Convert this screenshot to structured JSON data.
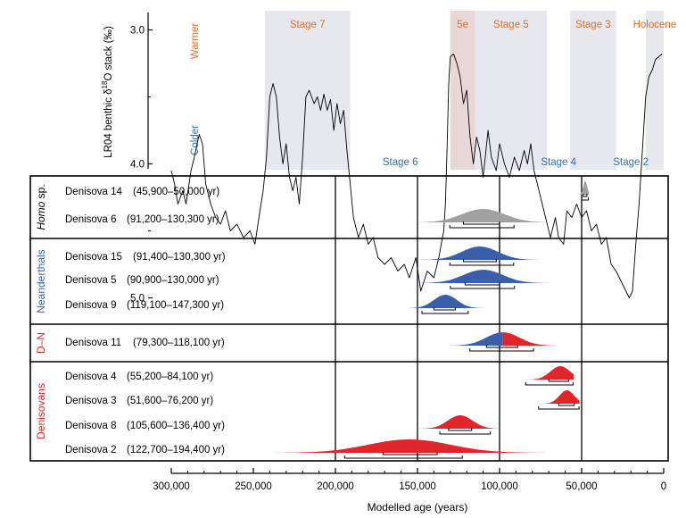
{
  "chart_data": {
    "type": "chart",
    "xlabel": "Modelled age (years)",
    "xlim": [
      305000,
      0
    ],
    "xticks": [
      300000,
      250000,
      200000,
      150000,
      100000,
      50000,
      0
    ],
    "xtick_labels": [
      "300,000",
      "250,000",
      "200,000",
      "150,000",
      "100,000",
      "50,000",
      "0"
    ],
    "colors": {
      "warm": "#e0702a",
      "cold": "#2e6fb0",
      "denisovan": "#e0262a",
      "neanderthal": "#3a5fa8",
      "homo": "#a0a0a0",
      "stage_shade": "#e7e7ee",
      "stage5e_shade": "#e9d6d6"
    },
    "top_panel": {
      "type": "line",
      "ylabel_parts": [
        "LR04 benthic δ",
        "18",
        "O stack (‰)"
      ],
      "ylim": [
        5.05,
        2.8
      ],
      "yticks": [
        3.0,
        4.0,
        5.0
      ],
      "ytick_labels": [
        "3.0",
        "4.0",
        "5.0"
      ],
      "warmer_label": "Warmer",
      "colder_label": "Colder",
      "stages": [
        {
          "label": "Stage 7",
          "from": 243000,
          "to": 191000,
          "shaded": true,
          "pos": "top",
          "tone": "warm"
        },
        {
          "label": "Stage 6",
          "from": 191000,
          "to": 130000,
          "shaded": false,
          "pos": "bottom",
          "tone": "cold"
        },
        {
          "label": "5e",
          "from": 130000,
          "to": 115000,
          "shaded": true,
          "pos": "top",
          "tone": "warm",
          "special": true
        },
        {
          "label": "Stage 5",
          "from": 115000,
          "to": 71000,
          "shaded": true,
          "pos": "top",
          "tone": "warm"
        },
        {
          "label": "Stage 4",
          "from": 71000,
          "to": 57000,
          "shaded": false,
          "pos": "bottom",
          "tone": "cold"
        },
        {
          "label": "Stage 3",
          "from": 57000,
          "to": 29000,
          "shaded": true,
          "pos": "top",
          "tone": "warm"
        },
        {
          "label": "Stage 2",
          "from": 29000,
          "to": 11000,
          "shaded": false,
          "pos": "bottom",
          "tone": "cold"
        },
        {
          "label": "Holocene",
          "from": 11000,
          "to": 0,
          "shaded": true,
          "pos": "top",
          "tone": "warm"
        }
      ],
      "curve": [
        [
          300000,
          4.05
        ],
        [
          298000,
          4.15
        ],
        [
          296000,
          4.3
        ],
        [
          293000,
          4.2
        ],
        [
          291000,
          4.3
        ],
        [
          288000,
          4.05
        ],
        [
          286000,
          3.95
        ],
        [
          283000,
          3.78
        ],
        [
          281000,
          3.85
        ],
        [
          279000,
          4.15
        ],
        [
          276000,
          4.3
        ],
        [
          273000,
          4.4
        ],
        [
          270000,
          4.45
        ],
        [
          267000,
          4.35
        ],
        [
          264000,
          4.5
        ],
        [
          260000,
          4.45
        ],
        [
          256000,
          4.55
        ],
        [
          252000,
          4.5
        ],
        [
          249000,
          4.6
        ],
        [
          246000,
          4.35
        ],
        [
          244000,
          4.2
        ],
        [
          242000,
          3.95
        ],
        [
          240000,
          3.5
        ],
        [
          238000,
          3.4
        ],
        [
          236000,
          3.5
        ],
        [
          234000,
          3.8
        ],
        [
          232000,
          4.0
        ],
        [
          230000,
          3.85
        ],
        [
          228000,
          4.1
        ],
        [
          226000,
          4.2
        ],
        [
          224000,
          4.1
        ],
        [
          222000,
          4.3
        ],
        [
          220000,
          3.95
        ],
        [
          218000,
          3.5
        ],
        [
          216000,
          3.45
        ],
        [
          213000,
          3.55
        ],
        [
          211000,
          3.5
        ],
        [
          209000,
          3.6
        ],
        [
          207000,
          3.48
        ],
        [
          205000,
          3.6
        ],
        [
          203000,
          3.52
        ],
        [
          201000,
          3.75
        ],
        [
          199000,
          3.55
        ],
        [
          197000,
          3.7
        ],
        [
          195000,
          3.6
        ],
        [
          193000,
          3.9
        ],
        [
          191000,
          4.15
        ],
        [
          189000,
          4.4
        ],
        [
          186000,
          4.55
        ],
        [
          183000,
          4.45
        ],
        [
          180000,
          4.6
        ],
        [
          177000,
          4.55
        ],
        [
          174000,
          4.7
        ],
        [
          170000,
          4.75
        ],
        [
          166000,
          4.7
        ],
        [
          162000,
          4.8
        ],
        [
          158000,
          4.75
        ],
        [
          155000,
          4.85
        ],
        [
          151000,
          4.7
        ],
        [
          148000,
          4.95
        ],
        [
          144000,
          4.8
        ],
        [
          140000,
          4.85
        ],
        [
          137000,
          4.7
        ],
        [
          134000,
          4.5
        ],
        [
          133000,
          4.3
        ],
        [
          132000,
          3.9
        ],
        [
          131000,
          3.4
        ],
        [
          130000,
          3.2
        ],
        [
          128000,
          3.18
        ],
        [
          126000,
          3.25
        ],
        [
          124000,
          3.35
        ],
        [
          122000,
          3.55
        ],
        [
          120000,
          3.45
        ],
        [
          118000,
          3.8
        ],
        [
          116000,
          4.0
        ],
        [
          114000,
          3.8
        ],
        [
          112000,
          3.9
        ],
        [
          110000,
          4.1
        ],
        [
          107000,
          3.75
        ],
        [
          105000,
          3.95
        ],
        [
          102000,
          4.05
        ],
        [
          100000,
          3.85
        ],
        [
          97000,
          4.0
        ],
        [
          94000,
          4.1
        ],
        [
          91000,
          3.95
        ],
        [
          88000,
          4.05
        ],
        [
          85000,
          3.9
        ],
        [
          83000,
          4.0
        ],
        [
          81000,
          3.85
        ],
        [
          79000,
          4.05
        ],
        [
          76000,
          4.2
        ],
        [
          73000,
          4.35
        ],
        [
          71000,
          4.45
        ],
        [
          69000,
          4.55
        ],
        [
          66000,
          4.4
        ],
        [
          64000,
          4.55
        ],
        [
          61000,
          4.6
        ],
        [
          59000,
          4.35
        ],
        [
          56000,
          4.4
        ],
        [
          53000,
          4.3
        ],
        [
          50000,
          4.4
        ],
        [
          47000,
          4.35
        ],
        [
          44000,
          4.5
        ],
        [
          41000,
          4.45
        ],
        [
          38000,
          4.6
        ],
        [
          35000,
          4.55
        ],
        [
          32000,
          4.75
        ],
        [
          29000,
          4.8
        ],
        [
          27000,
          4.85
        ],
        [
          25000,
          4.9
        ],
        [
          23000,
          4.95
        ],
        [
          21000,
          5.0
        ],
        [
          19000,
          4.95
        ],
        [
          17000,
          4.6
        ],
        [
          15000,
          4.3
        ],
        [
          13000,
          3.9
        ],
        [
          11000,
          3.5
        ],
        [
          9000,
          3.35
        ],
        [
          7000,
          3.3
        ],
        [
          5000,
          3.22
        ],
        [
          3000,
          3.2
        ],
        [
          1000,
          3.18
        ]
      ]
    },
    "bottom_panel": {
      "type": "range_distribution",
      "groups": [
        {
          "label": "Homo sp.",
          "label_parts": [
            "Homo",
            " sp."
          ],
          "color": "#a0a0a0",
          "samples": [
            {
              "name": "Denisova 14",
              "range": "(45,900–50,000 yr)",
              "peak": 47800,
              "sd": 1200,
              "ci68": [
                49000,
                46800
              ],
              "ci95": [
                50000,
                45900
              ],
              "split": false,
              "capped": true
            },
            {
              "name": "Denisova 6",
              "range": "(91,200–130,300 yr)",
              "peak": 110000,
              "sd": 13000,
              "ci68": [
                122000,
                100000
              ],
              "ci95": [
                130300,
                91200
              ],
              "split": false,
              "capped": false
            }
          ]
        },
        {
          "label": "Neanderthals",
          "color": "#3a5fa8",
          "samples": [
            {
              "name": "Denisova 15",
              "range": "(91,400–130,300 yr)",
              "peak": 112000,
              "sd": 11000,
              "ci68": [
                122000,
                102000
              ],
              "ci95": [
                130300,
                91400
              ],
              "split": false,
              "capped": false
            },
            {
              "name": "Denisova 5",
              "range": "(90,900–130,000 yr)",
              "peak": 110000,
              "sd": 12000,
              "ci68": [
                121000,
                100000
              ],
              "ci95": [
                130000,
                90900
              ],
              "split": false,
              "capped": false
            },
            {
              "name": "Denisova 9",
              "range": "(119,100–147,300 yr)",
              "peak": 133000,
              "sd": 7000,
              "ci68": [
                140000,
                127000
              ],
              "ci95": [
                147300,
                119100
              ],
              "split": false,
              "capped": false
            }
          ]
        },
        {
          "label": "D–N",
          "color": "#e0262a",
          "samples": [
            {
              "name": "Denisova 11",
              "range": "(79,300–118,100 yr)",
              "peak": 98000,
              "sd": 10000,
              "ci68": [
                108000,
                89000
              ],
              "ci95": [
                118100,
                79300
              ],
              "split": true,
              "capped": false
            }
          ]
        },
        {
          "label": "Denisovans",
          "color": "#e0262a",
          "samples": [
            {
              "name": "Denisova 4",
              "range": "(55,200–84,100 yr)",
              "peak": 63000,
              "sd": 6000,
              "ci68": [
                70000,
                58000
              ],
              "ci95": [
                84100,
                55200
              ],
              "split": false,
              "capped": true
            },
            {
              "name": "Denisova 3",
              "range": "(51,600–76,200 yr)",
              "peak": 59000,
              "sd": 4500,
              "ci68": [
                64000,
                54500
              ],
              "ci95": [
                76200,
                51600
              ],
              "split": false,
              "capped": true
            },
            {
              "name": "Denisova 8",
              "range": "(105,600–136,400 yr)",
              "peak": 124000,
              "sd": 7500,
              "ci68": [
                131000,
                117000
              ],
              "ci95": [
                136400,
                105600
              ],
              "split": false,
              "capped": false
            },
            {
              "name": "Denisova 2",
              "range": "(122,700–194,400 yr)",
              "peak": 155000,
              "sd": 25000,
              "ci68": [
                171000,
                138000
              ],
              "ci95": [
                194400,
                122700
              ],
              "split": false,
              "capped": false
            }
          ]
        }
      ],
      "reference_lines": [
        200000,
        150000,
        100000,
        50000
      ]
    }
  }
}
